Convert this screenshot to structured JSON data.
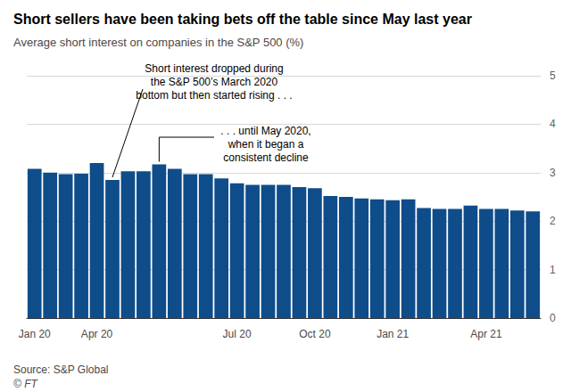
{
  "chart_data": {
    "type": "bar",
    "title": "Short sellers have been taking bets off the table since May last year",
    "subtitle": "Average short interest on companies in the S&P 500 (%)",
    "categories": [
      "Jan 20",
      null,
      null,
      null,
      "Apr 20",
      null,
      null,
      null,
      null,
      null,
      null,
      null,
      null,
      "Jul 20",
      null,
      null,
      null,
      null,
      "Oct 20",
      null,
      null,
      null,
      null,
      "Jan 21",
      null,
      null,
      null,
      null,
      null,
      "Apr 21",
      null,
      null,
      null
    ],
    "values": [
      3.08,
      3.0,
      2.97,
      2.98,
      3.2,
      2.85,
      3.03,
      3.03,
      3.17,
      3.08,
      2.97,
      2.97,
      2.88,
      2.78,
      2.75,
      2.75,
      2.75,
      2.7,
      2.68,
      2.52,
      2.5,
      2.47,
      2.45,
      2.43,
      2.45,
      2.27,
      2.25,
      2.25,
      2.32,
      2.25,
      2.25,
      2.22,
      2.2
    ],
    "color": "#0f4c8a",
    "ylim": [
      0,
      5
    ],
    "yticks": [
      0,
      1,
      2,
      3,
      4,
      5
    ],
    "grid": true,
    "annotations": [
      {
        "text": "Short interest dropped during\nthe S&P 500’s March 2020\nbottom but then started rising . . .",
        "index": 5
      },
      {
        "text": ". . . until May 2020,\nwhen it began a\nconsistent decline",
        "index": 8
      }
    ],
    "source": "Source: S&P Global",
    "credit": "© FT"
  }
}
